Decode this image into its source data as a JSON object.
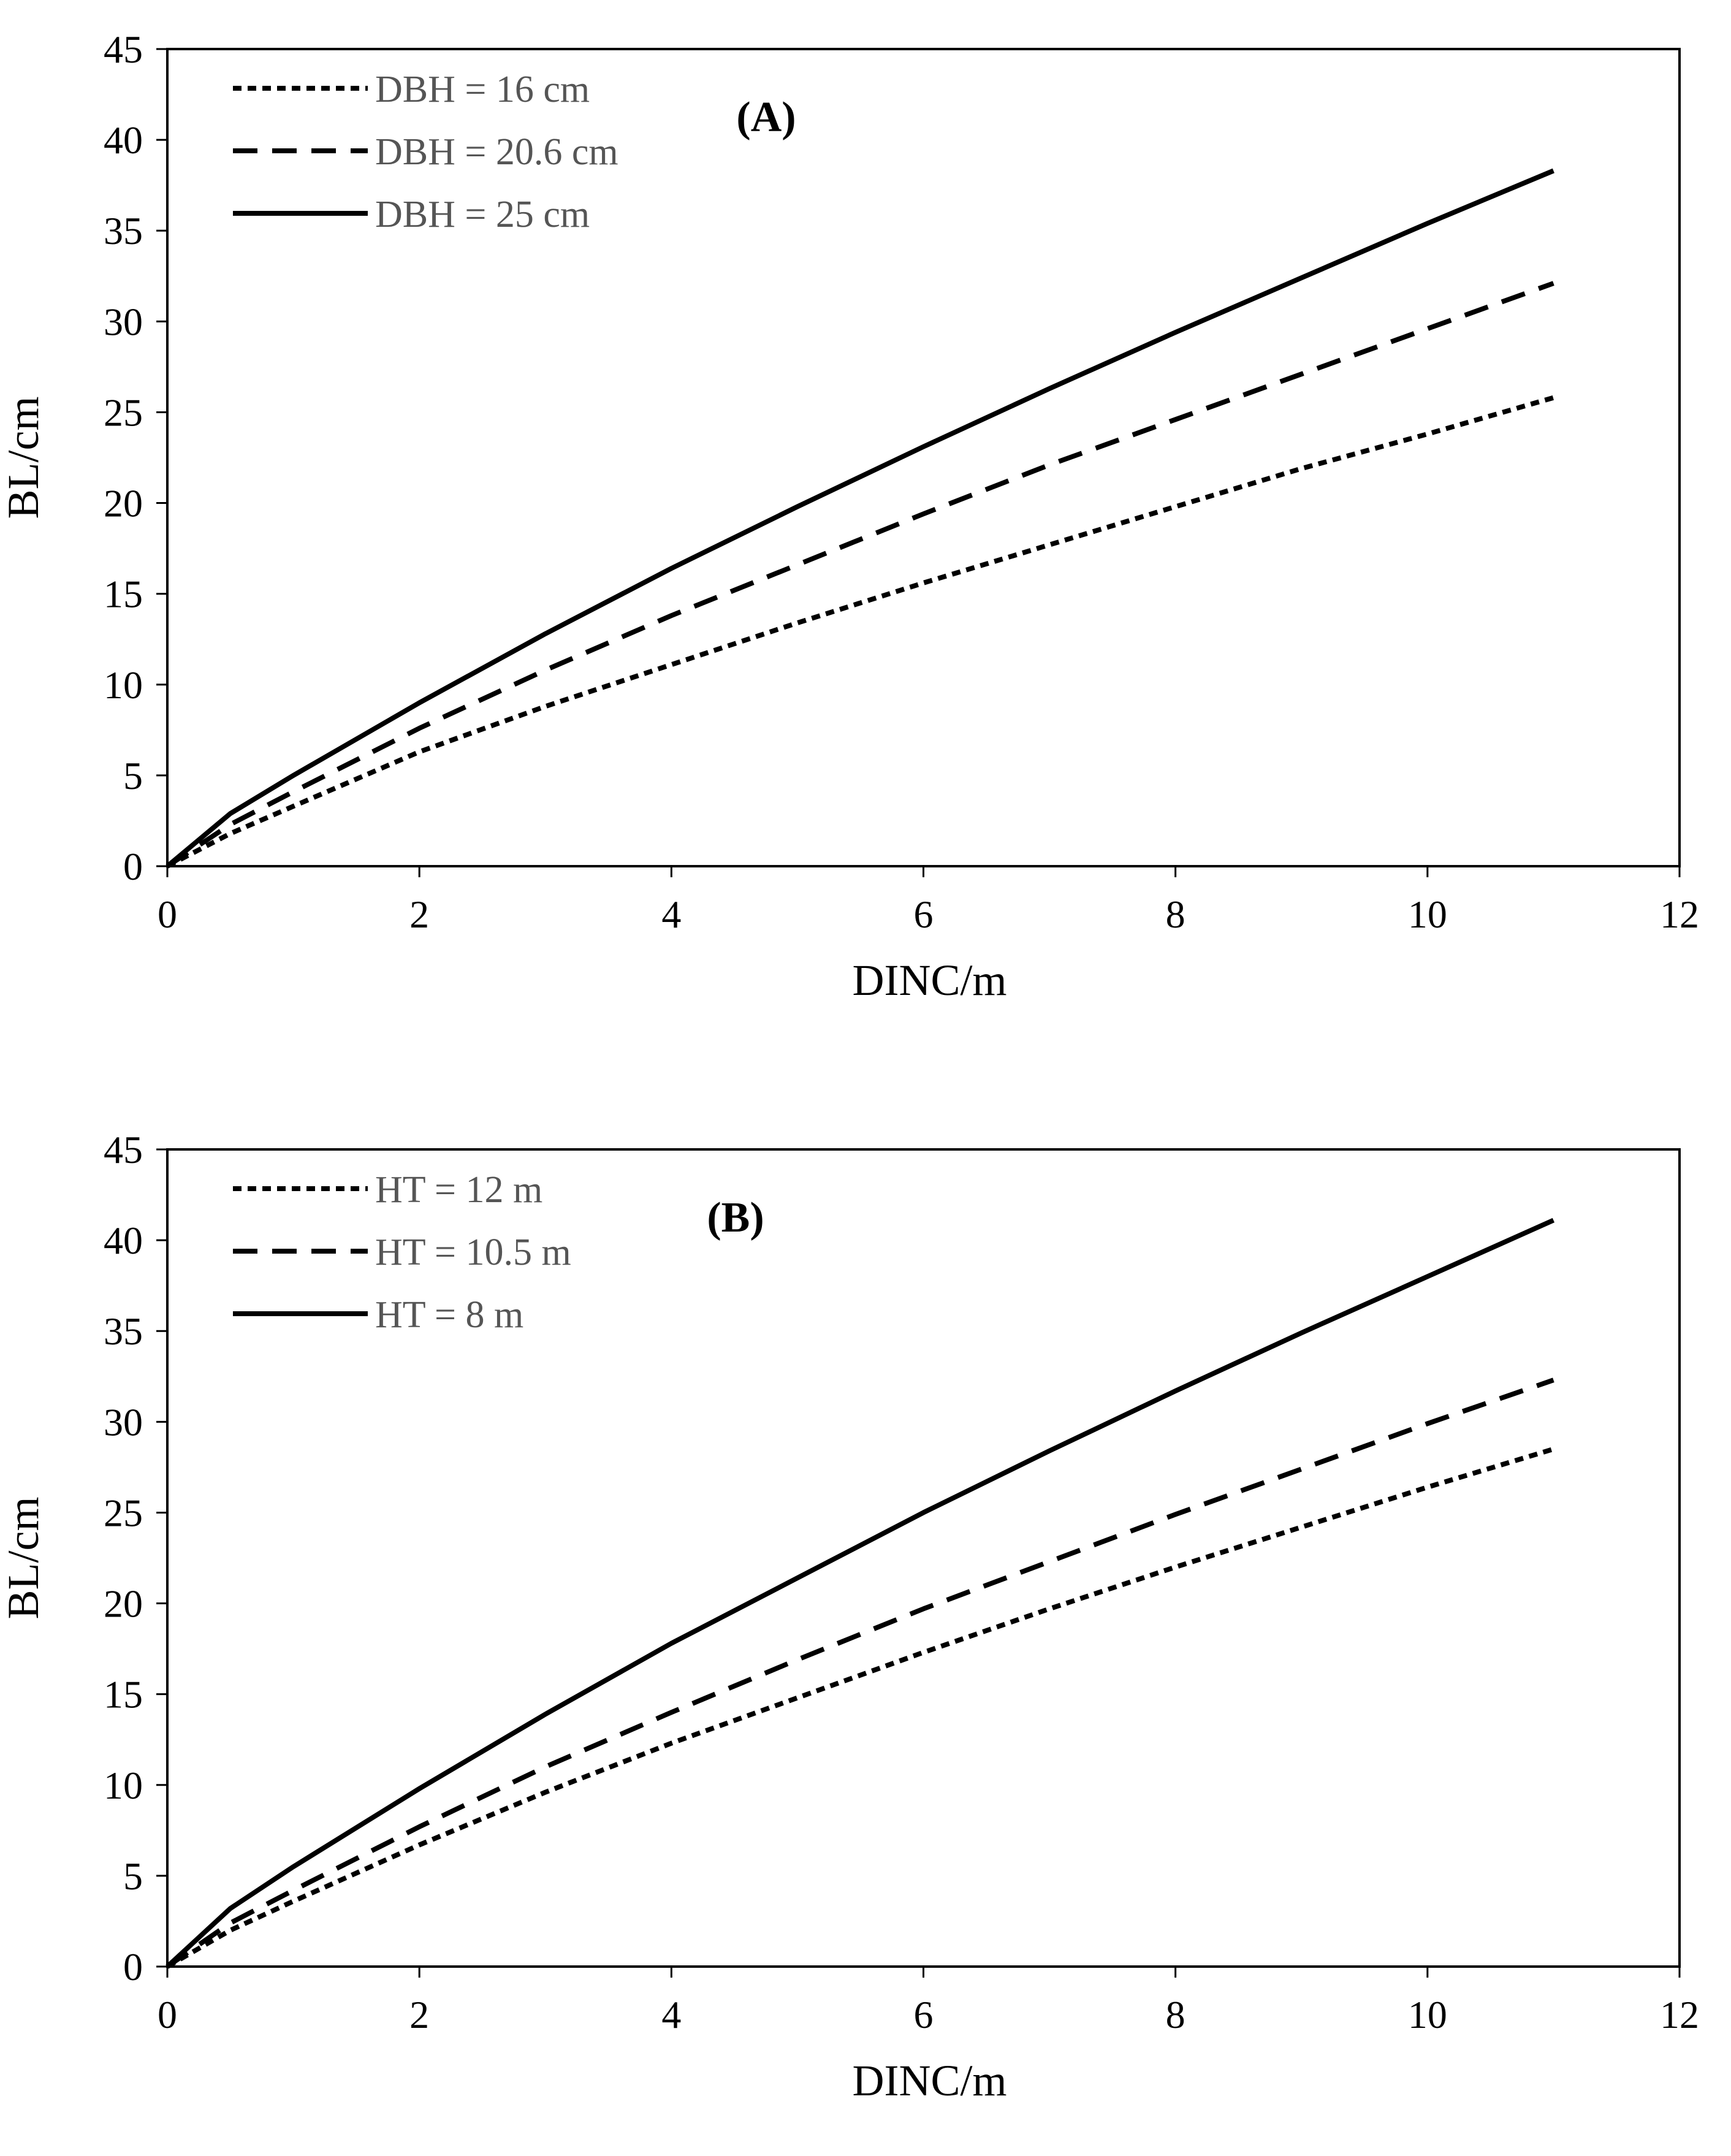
{
  "chart_data": [
    {
      "type": "line",
      "panel_label": "(A)",
      "xlabel": "DINC/m",
      "ylabel": "BL/cm",
      "xlim": [
        0,
        12
      ],
      "ylim": [
        0,
        45
      ],
      "x_ticks": [
        "0",
        "2",
        "4",
        "6",
        "8",
        "10",
        "12"
      ],
      "y_ticks": [
        "0",
        "5",
        "10",
        "15",
        "20",
        "25",
        "30",
        "35",
        "40",
        "45"
      ],
      "grid": false,
      "legend_position": "top-left",
      "x": [
        0,
        0.5,
        1,
        2,
        3,
        4,
        5,
        6,
        7,
        8,
        9,
        10,
        11
      ],
      "series": [
        {
          "name": "DBH = 16 cm",
          "style": "short-dash",
          "values": [
            0,
            1.8,
            3.3,
            6.3,
            8.8,
            11.1,
            13.4,
            15.6,
            17.7,
            19.8,
            21.9,
            23.8,
            25.8
          ]
        },
        {
          "name": "DBH = 20.6 cm",
          "style": "long-dash",
          "values": [
            0,
            2.3,
            4.1,
            7.6,
            10.8,
            13.8,
            16.6,
            19.4,
            22.1,
            24.6,
            27.1,
            29.6,
            32.1
          ]
        },
        {
          "name": "DBH = 25 cm",
          "style": "solid",
          "values": [
            0,
            2.9,
            5.0,
            9.0,
            12.8,
            16.4,
            19.8,
            23.1,
            26.3,
            29.4,
            32.4,
            35.4,
            38.3
          ]
        }
      ]
    },
    {
      "type": "line",
      "panel_label": "(B)",
      "xlabel": "DINC/m",
      "ylabel": "BL/cm",
      "xlim": [
        0,
        12
      ],
      "ylim": [
        0,
        45
      ],
      "x_ticks": [
        "0",
        "2",
        "4",
        "6",
        "8",
        "10",
        "12"
      ],
      "y_ticks": [
        "0",
        "5",
        "10",
        "15",
        "20",
        "25",
        "30",
        "35",
        "40",
        "45"
      ],
      "grid": false,
      "legend_position": "top-left",
      "x": [
        0,
        0.5,
        1,
        2,
        3,
        4,
        5,
        6,
        7,
        8,
        9,
        10,
        11
      ],
      "series": [
        {
          "name": "HT = 12 m",
          "style": "short-dash",
          "values": [
            0,
            2.0,
            3.6,
            6.7,
            9.6,
            12.3,
            14.8,
            17.3,
            19.7,
            22.0,
            24.2,
            26.4,
            28.5
          ]
        },
        {
          "name": "HT = 10.5 m",
          "style": "long-dash",
          "values": [
            0,
            2.4,
            4.2,
            7.7,
            11.0,
            14.0,
            16.9,
            19.7,
            22.3,
            24.9,
            27.4,
            29.9,
            32.3
          ]
        },
        {
          "name": "HT = 8 m",
          "style": "solid",
          "values": [
            0,
            3.2,
            5.5,
            9.8,
            13.9,
            17.8,
            21.4,
            25.0,
            28.4,
            31.7,
            34.9,
            38.0,
            41.1
          ]
        }
      ]
    }
  ]
}
